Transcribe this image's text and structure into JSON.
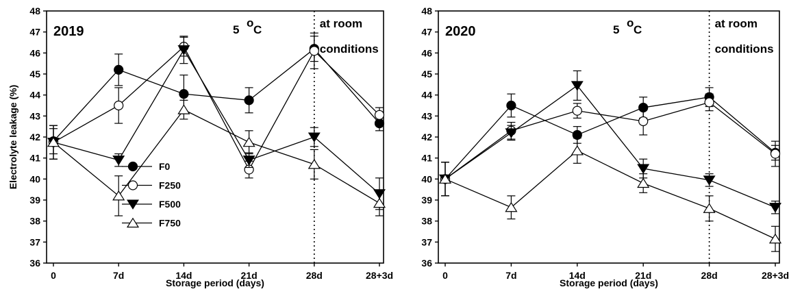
{
  "chart_data": [
    {
      "type": "line",
      "panel_label": "2019",
      "temp_label": "5 ",
      "temp_unit": "C",
      "temp_sup": "o",
      "room_label_1": "at room",
      "room_label_2": "conditions",
      "ylabel": "Electrolyte leakage (%)",
      "xlabel": "Storage period (days)",
      "categories": [
        "0",
        "7d",
        "14d",
        "21d",
        "28d",
        "28+3d"
      ],
      "ylim": [
        36,
        48
      ],
      "yticks": [
        36,
        37,
        38,
        39,
        40,
        41,
        42,
        43,
        44,
        45,
        46,
        47,
        48
      ],
      "divider_at": "28d",
      "legend_position": "center-left",
      "series": [
        {
          "name": "F0",
          "marker": "filled-circle",
          "values": [
            41.8,
            45.2,
            44.05,
            43.75,
            46.2,
            42.65
          ],
          "errors": [
            0.6,
            0.75,
            0.9,
            0.6,
            0.6,
            0.35
          ]
        },
        {
          "name": "F250",
          "marker": "open-circle",
          "values": [
            41.75,
            43.5,
            46.3,
            40.45,
            46.1,
            43.05
          ],
          "errors": [
            0.8,
            0.85,
            0.45,
            0.4,
            0.85,
            0.35
          ]
        },
        {
          "name": "F500",
          "marker": "filled-triangle-down",
          "values": [
            41.75,
            40.9,
            46.15,
            40.9,
            42.0,
            39.3
          ],
          "errors": [
            0.8,
            0.3,
            0.65,
            0.35,
            0.45,
            0.75
          ]
        },
        {
          "name": "F750",
          "marker": "open-triangle-up",
          "values": [
            41.75,
            39.2,
            43.3,
            41.75,
            40.7,
            38.85
          ],
          "errors": [
            0.8,
            0.95,
            0.45,
            0.55,
            0.7,
            0.6
          ]
        }
      ]
    },
    {
      "type": "line",
      "panel_label": "2020",
      "temp_label": "5 ",
      "temp_unit": "C",
      "temp_sup": "o",
      "room_label_1": "at room",
      "room_label_2": "conditions",
      "ylabel": "",
      "xlabel": "Storage period (days)",
      "categories": [
        "0",
        "7d",
        "14d",
        "21d",
        "28d",
        "28+3d"
      ],
      "ylim": [
        36,
        48
      ],
      "yticks": [
        36,
        37,
        38,
        39,
        40,
        41,
        42,
        43,
        44,
        45,
        46,
        47,
        48
      ],
      "divider_at": "28d",
      "series": [
        {
          "name": "F0",
          "marker": "filled-circle",
          "values": [
            40.0,
            43.5,
            42.1,
            43.4,
            43.9,
            41.25
          ],
          "errors": [
            0.8,
            0.55,
            0.4,
            0.5,
            0.45,
            0.35
          ]
        },
        {
          "name": "F250",
          "marker": "open-circle",
          "values": [
            40.0,
            42.3,
            43.25,
            42.75,
            43.65,
            41.2
          ],
          "errors": [
            0.8,
            0.4,
            0.35,
            0.65,
            0.4,
            0.6
          ]
        },
        {
          "name": "F500",
          "marker": "filled-triangle-down",
          "values": [
            40.0,
            42.2,
            44.45,
            40.5,
            39.95,
            38.65
          ],
          "errors": [
            0.8,
            0.35,
            0.7,
            0.45,
            0.3,
            0.3
          ]
        },
        {
          "name": "F750",
          "marker": "open-triangle-up",
          "values": [
            40.0,
            38.65,
            41.35,
            39.8,
            38.6,
            37.15
          ],
          "errors": [
            0.8,
            0.55,
            0.6,
            0.45,
            0.6,
            0.6
          ]
        }
      ]
    }
  ]
}
